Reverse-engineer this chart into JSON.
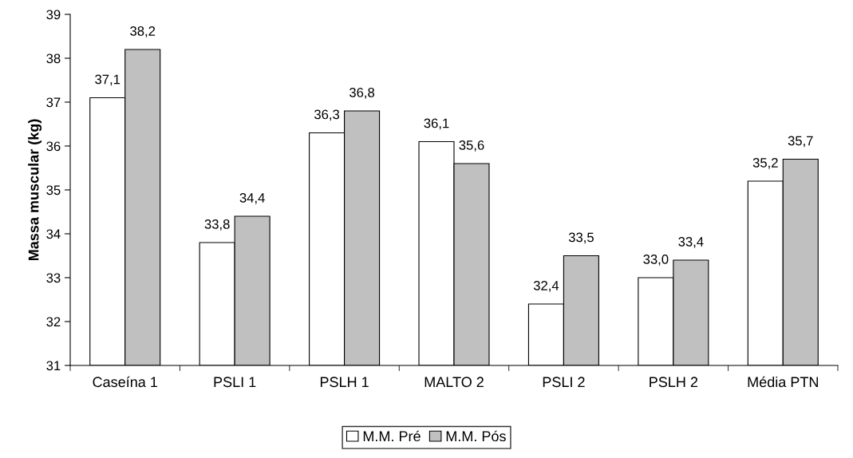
{
  "chart_data": {
    "type": "bar",
    "ylabel": "Massa muscular (kg)",
    "categories": [
      "Caseína 1",
      "PSLI 1",
      "PSLH 1",
      "MALTO 2",
      "PSLI 2",
      "PSLH 2",
      "Média PTN"
    ],
    "series": [
      {
        "name": "M.M. Pré",
        "color": "#ffffff",
        "values": [
          37.1,
          33.8,
          36.3,
          36.1,
          32.4,
          33.0,
          35.2
        ],
        "value_labels": [
          "37,1",
          "33,8",
          "36,3",
          "36,1",
          "32,4",
          "33,0",
          "35,2"
        ]
      },
      {
        "name": "M.M. Pós",
        "color": "#c0c0c0",
        "values": [
          38.2,
          34.4,
          36.8,
          35.6,
          33.5,
          33.4,
          35.7
        ],
        "value_labels": [
          "38,2",
          "34,4",
          "36,8",
          "35,6",
          "33,5",
          "33,4",
          "35,7"
        ]
      }
    ],
    "ylim": [
      31,
      39
    ],
    "yticks": [
      31,
      32,
      33,
      34,
      35,
      36,
      37,
      38,
      39
    ],
    "grid": false,
    "legend": "bottom"
  }
}
